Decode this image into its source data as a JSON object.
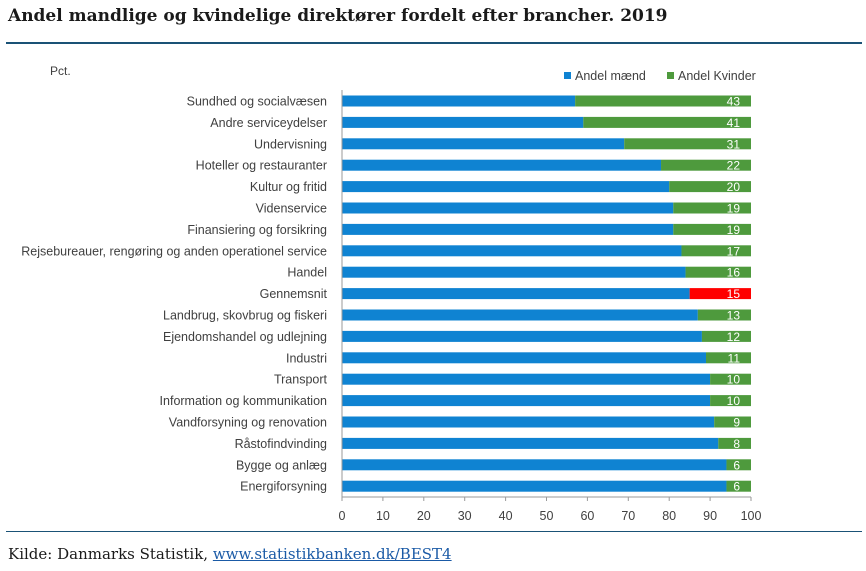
{
  "title": "Andel mandlige og kvindelige direktører fordelt efter brancher. 2019",
  "source": {
    "prefix": "Kilde: Danmarks Statistik, ",
    "link_text": "www.statistikbanken.dk/BEST4"
  },
  "colors": {
    "men": "#0f83d2",
    "women": "#4e9a3d",
    "highlight": "#ff0000",
    "rule": "#1a5276"
  },
  "chart_data": {
    "type": "bar",
    "orientation": "horizontal",
    "stacked": true,
    "unit_label": "Pct.",
    "categories": [
      "Sundhed og socialvæsen",
      "Andre serviceydelser",
      "Undervisning",
      "Hoteller og restauranter",
      "Kultur og fritid",
      "Videnservice",
      "Finansiering og forsikring",
      "Rejsebureauer, rengøring og anden operationel service",
      "Handel",
      "Gennemsnit",
      "Landbrug, skovbrug og fiskeri",
      "Ejendomshandel og udlejning",
      "Industri",
      "Transport",
      "Information og kommunikation",
      "Vandforsyning og renovation",
      "Råstofindvinding",
      "Bygge og anlæg",
      "Energiforsyning"
    ],
    "series": [
      {
        "name": "Andel mænd",
        "values": [
          57,
          59,
          69,
          78,
          80,
          81,
          81,
          83,
          84,
          85,
          87,
          88,
          89,
          90,
          90,
          91,
          92,
          94,
          94
        ]
      },
      {
        "name": "Andel Kvinder",
        "values": [
          43,
          41,
          31,
          22,
          20,
          19,
          19,
          17,
          16,
          15,
          13,
          12,
          11,
          10,
          10,
          9,
          8,
          6,
          6
        ]
      }
    ],
    "data_labels": [
      "43",
      "41",
      "31",
      "22",
      "20",
      "19",
      "19",
      "17",
      "16",
      "15",
      "13",
      "12",
      "11",
      "10",
      "10",
      "9",
      "8",
      "6",
      "6"
    ],
    "highlight_category": "Gennemsnit",
    "xlim": [
      0,
      100
    ],
    "xticks": [
      "0",
      "10",
      "20",
      "30",
      "40",
      "50",
      "60",
      "70",
      "80",
      "90",
      "100"
    ],
    "legend_position": "top-right",
    "grid": false
  }
}
